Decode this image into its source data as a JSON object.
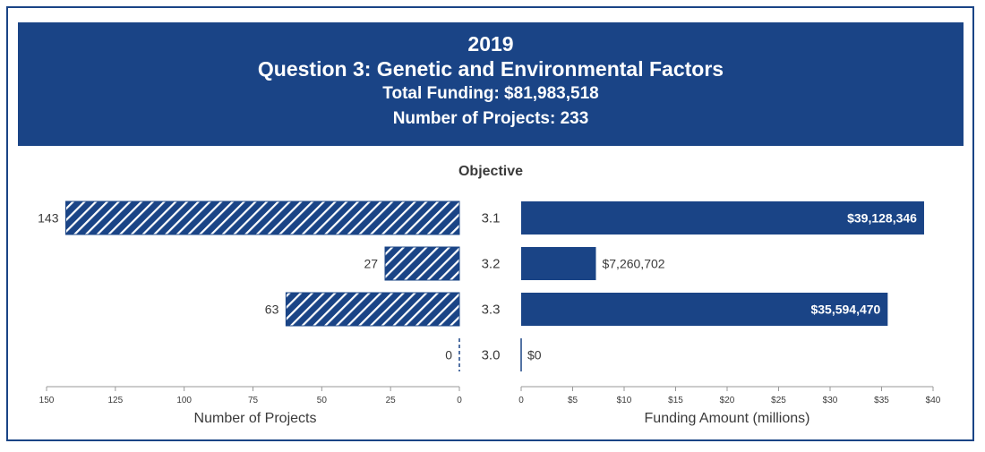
{
  "header": {
    "year": "2019",
    "title": "Question 3: Genetic and Environmental Factors",
    "total_funding": "Total Funding: $81,983,518",
    "num_projects": "Number of Projects: 233"
  },
  "colors": {
    "primary": "#1a4486",
    "text": "#3a3a3a"
  },
  "chart_data": [
    {
      "type": "bar",
      "orientation": "horizontal",
      "direction": "right-to-left",
      "fill": "hatched",
      "category_title": "Objective",
      "categories": [
        "3.1",
        "3.2",
        "3.3",
        "3.0"
      ],
      "values": [
        143,
        27,
        63,
        0
      ],
      "value_labels": [
        "143",
        "27",
        "63",
        "0"
      ],
      "xlabel": "Number of Projects",
      "xlim": [
        0,
        150
      ],
      "ticks": [
        150,
        125,
        100,
        75,
        50,
        25,
        0
      ],
      "tick_labels": [
        "150",
        "125",
        "100",
        "75",
        "50",
        "25",
        "0"
      ]
    },
    {
      "type": "bar",
      "orientation": "horizontal",
      "fill": "solid",
      "categories": [
        "3.1",
        "3.2",
        "3.3",
        "3.0"
      ],
      "values": [
        39.128346,
        7.260702,
        35.59447,
        0
      ],
      "value_labels": [
        "$39,128,346",
        "$7,260,702",
        "$35,594,470",
        "$0"
      ],
      "xlabel": "Funding Amount (millions)",
      "xlim": [
        0,
        40
      ],
      "ticks": [
        0,
        5,
        10,
        15,
        20,
        25,
        30,
        35,
        40
      ],
      "tick_labels": [
        "0",
        "$5",
        "$10",
        "$15",
        "$20",
        "$25",
        "$30",
        "$35",
        "$40"
      ]
    }
  ]
}
